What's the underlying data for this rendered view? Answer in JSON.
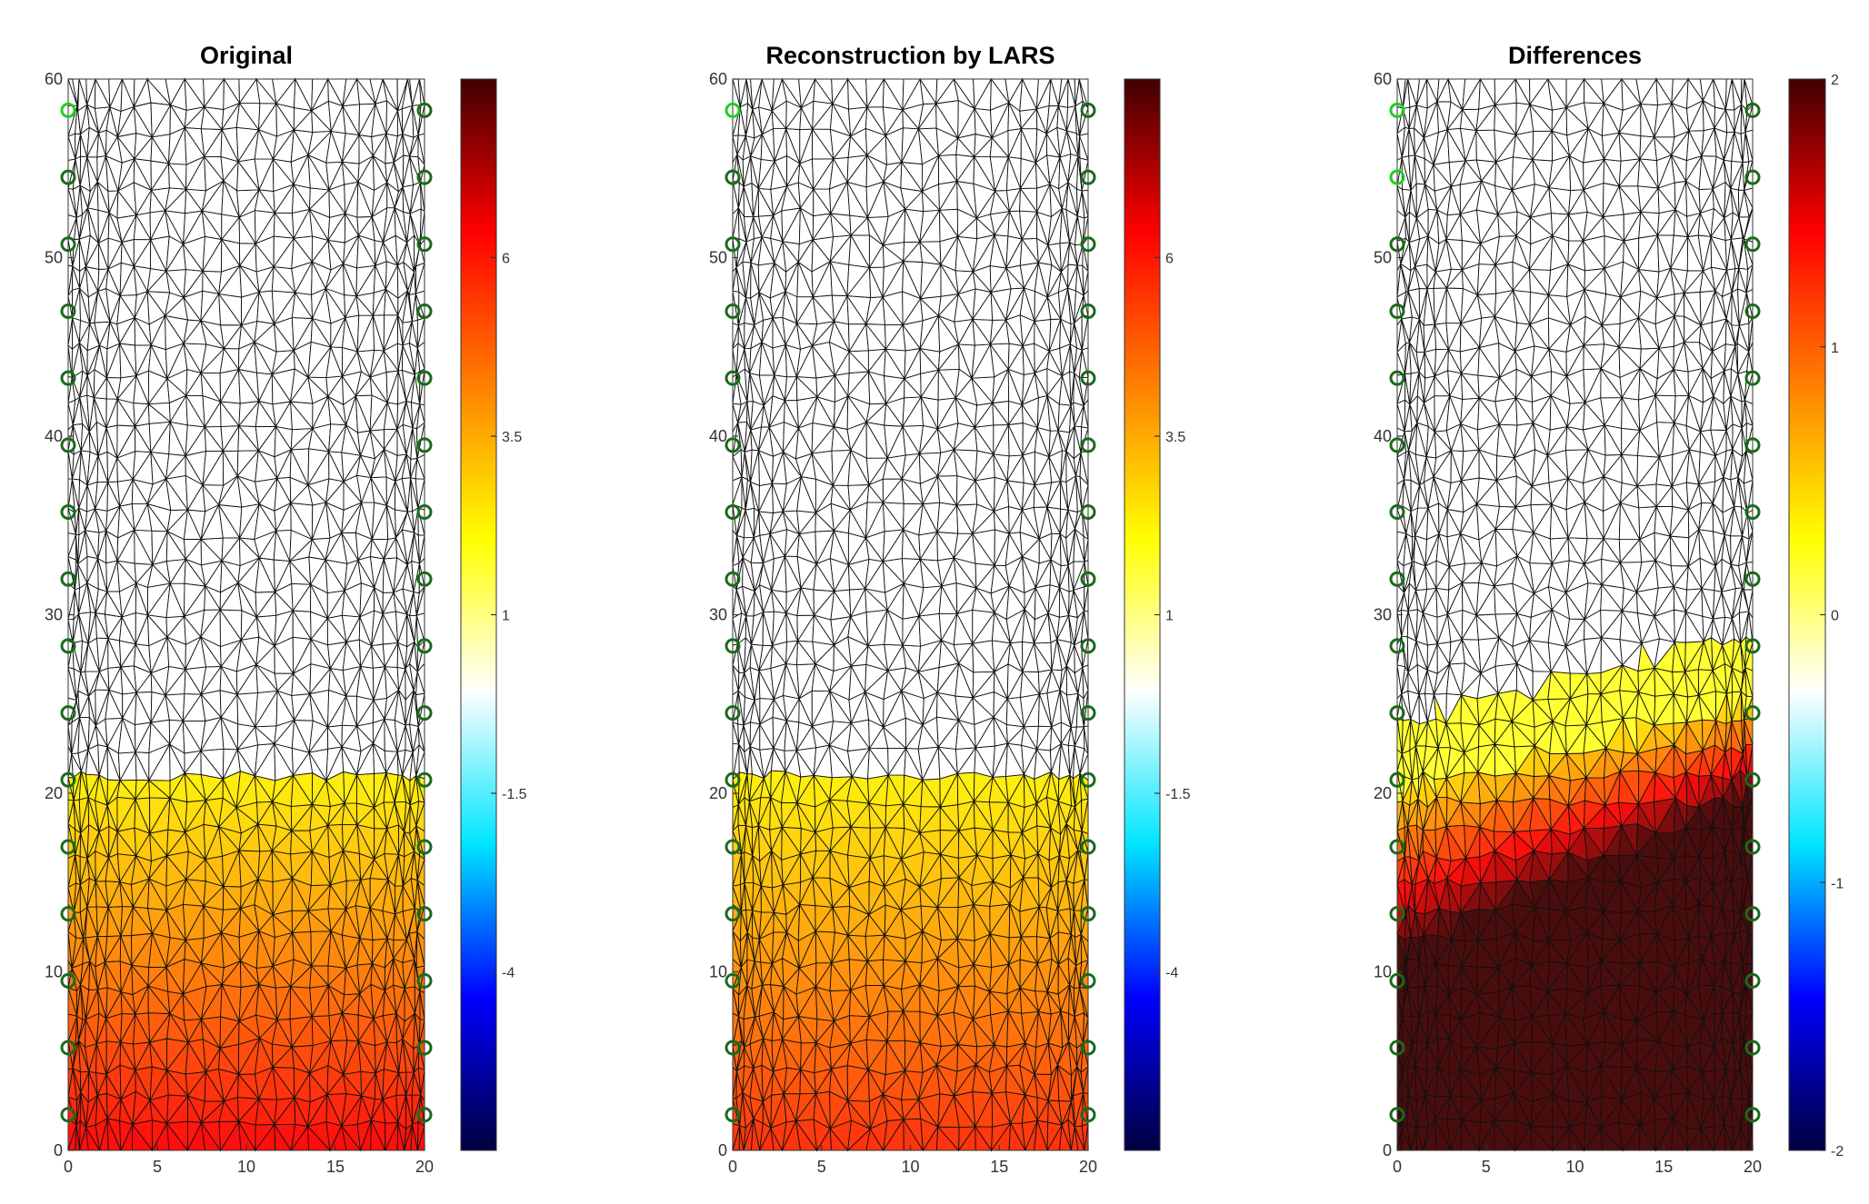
{
  "colors": {
    "sensor_dark": "#1b6a1b",
    "sensor_bright": "#22cc22",
    "mesh": "#111111",
    "colormap": [
      "#000040",
      "#0000ff",
      "#00e5ff",
      "#ffffff",
      "#ffff00",
      "#ff8000",
      "#ff0000",
      "#400000"
    ]
  },
  "chart_data": [
    {
      "type": "heatmap",
      "title": "Original",
      "xlim": [
        0,
        20
      ],
      "ylim": [
        0,
        60
      ],
      "xticks": [
        0,
        5,
        10,
        15,
        20
      ],
      "yticks": [
        0,
        10,
        20,
        30,
        40,
        50,
        60
      ],
      "colorbar": {
        "ticks": [
          -4,
          -1.5,
          1,
          3.5,
          6
        ],
        "range": [
          -6.5,
          8.5
        ]
      },
      "field": {
        "front_left_y": 21,
        "front_right_y": 21,
        "bottom_value": 6.5,
        "top_value": 2.3
      },
      "sensors": {
        "left_x": 0,
        "right_x": 20,
        "y": [
          2,
          5.75,
          9.5,
          13.25,
          17,
          20.75,
          24.5,
          28.25,
          32,
          35.75,
          39.5,
          43.25,
          47,
          50.75,
          54.5,
          58.25
        ],
        "bright_left_y": [
          58.25
        ]
      }
    },
    {
      "type": "heatmap",
      "title": "Reconstruction by LARS",
      "xlim": [
        0,
        20
      ],
      "ylim": [
        0,
        60
      ],
      "xticks": [
        0,
        5,
        10,
        15,
        20
      ],
      "yticks": [
        0,
        10,
        20,
        30,
        40,
        50,
        60
      ],
      "colorbar": {
        "ticks": [
          -4,
          -1.5,
          1,
          3.5,
          6
        ],
        "range": [
          -6.5,
          8.5
        ]
      },
      "field": {
        "front_left_y": 21,
        "front_right_y": 21,
        "bottom_value": 5.8,
        "top_value": 2.3
      },
      "sensors": {
        "left_x": 0,
        "right_x": 20,
        "y": [
          2,
          5.75,
          9.5,
          13.25,
          17,
          20.75,
          24.5,
          28.25,
          32,
          35.75,
          39.5,
          43.25,
          47,
          50.75,
          54.5,
          58.25
        ],
        "bright_left_y": [
          58.25
        ]
      }
    },
    {
      "type": "heatmap",
      "title": "Differences",
      "xlim": [
        0,
        20
      ],
      "ylim": [
        0,
        60
      ],
      "xticks": [
        0,
        5,
        10,
        15,
        20
      ],
      "yticks": [
        0,
        10,
        20,
        30,
        40,
        50,
        60
      ],
      "colorbar": {
        "ticks": [
          -2,
          -1,
          0,
          1,
          2
        ],
        "range": [
          -2,
          2
        ]
      },
      "field": {
        "front_left_y": 20,
        "front_right_y": 25,
        "bottom_value": 2,
        "top_value": 0.2,
        "rise_rate": 0.17,
        "upper_band": 4
      },
      "sensors": {
        "left_x": 0,
        "right_x": 20,
        "y": [
          2,
          5.75,
          9.5,
          13.25,
          17,
          20.75,
          24.5,
          28.25,
          32,
          35.75,
          39.5,
          43.25,
          47,
          50.75,
          54.5,
          58.25
        ],
        "bright_left_y": [
          58.25,
          54.5
        ]
      }
    }
  ]
}
